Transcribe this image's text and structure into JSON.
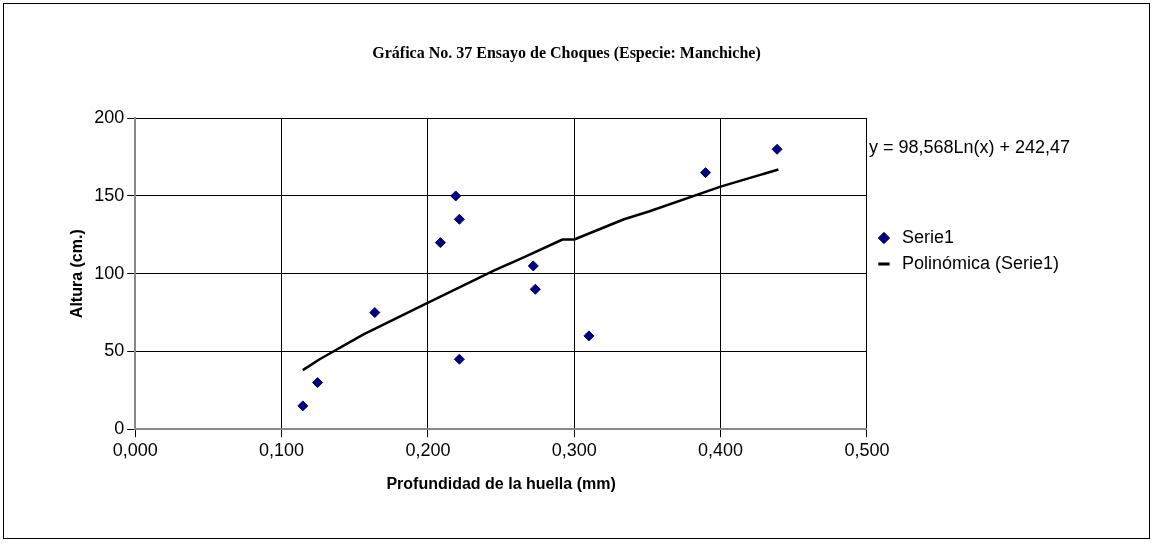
{
  "chart_data": {
    "type": "scatter",
    "title": "Gráfica No. 37 Ensayo de Choques (Especie: Manchiche)",
    "xlabel": "Profundidad de la huella (mm)",
    "ylabel": "Altura (cm.)",
    "series": [
      {
        "name": "Serie1",
        "type": "scatter",
        "color": "#000080",
        "marker": "diamond",
        "x": [
          0.1145,
          0.1246,
          0.1637,
          0.2085,
          0.219,
          0.2215,
          0.2215,
          0.272,
          0.2734,
          0.31,
          0.3897,
          0.4386
        ],
        "values": [
          15,
          30,
          75,
          120,
          150,
          135,
          45,
          105,
          90,
          60,
          165,
          180
        ]
      },
      {
        "name": "Polinómica (Serie1)",
        "type": "line",
        "color": "#000000",
        "marker": "none",
        "line_style": "solid",
        "x": [
          0.1145,
          0.126,
          0.156,
          0.197,
          0.245,
          0.262,
          0.292,
          0.3,
          0.334,
          0.351,
          0.4,
          0.4395
        ],
        "values": [
          38,
          45,
          61,
          80,
          102,
          109,
          122,
          122,
          135,
          140,
          156,
          167
        ]
      }
    ],
    "xlim": [
      0,
      0.5
    ],
    "xticks": [
      {
        "value": 0,
        "label": "0,000"
      },
      {
        "value": 0.1,
        "label": "0,100"
      },
      {
        "value": 0.2,
        "label": "0,200"
      },
      {
        "value": 0.3,
        "label": "0,300"
      },
      {
        "value": 0.4,
        "label": "0,400"
      },
      {
        "value": 0.5,
        "label": "0,500"
      }
    ],
    "ylim": [
      0,
      200
    ],
    "yticks": [
      0,
      50,
      100,
      150,
      200
    ],
    "grid": true,
    "legend": "right",
    "annotations": [
      "y = 98,568Ln(x) + 242,47"
    ]
  }
}
